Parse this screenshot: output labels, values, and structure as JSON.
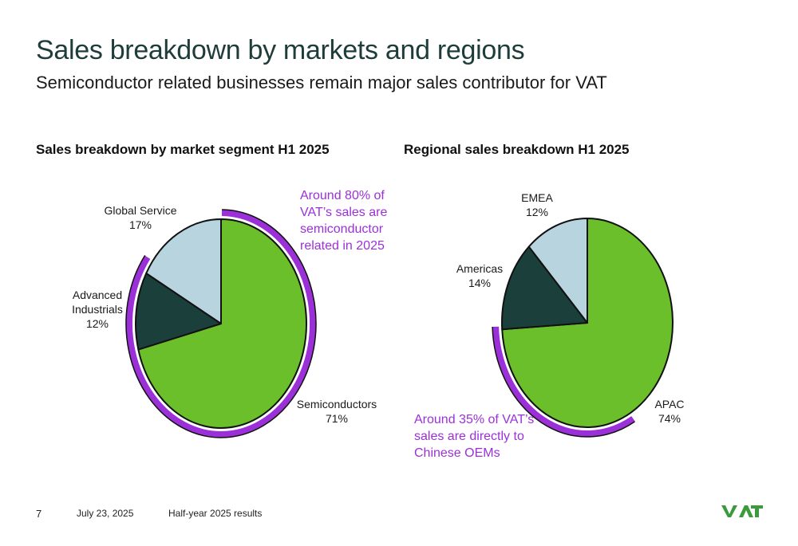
{
  "slide": {
    "title": "Sales breakdown by markets and regions",
    "subtitle": "Semiconductor related businesses remain major sales contributor for VAT"
  },
  "footer": {
    "page": "7",
    "date": "July 23, 2025",
    "document": "Half-year 2025 results"
  },
  "logo": {
    "text": "VAT",
    "color": "#3a9a3c"
  },
  "colors": {
    "green": "#6abf2a",
    "dark": "#1b3f3b",
    "light": "#b7d4df",
    "accent": "#9b30d9"
  },
  "chart_data": [
    {
      "type": "pie",
      "title": "Sales breakdown by market segment H1 2025",
      "slices": [
        {
          "label": "Semiconductors",
          "value": 71,
          "pct_label": "71%",
          "color": "#6abf2a"
        },
        {
          "label": "Advanced Industrials",
          "label_lines": [
            "Advanced",
            "Industrials"
          ],
          "value": 12,
          "pct_label": "12%",
          "color": "#1b3f3b"
        },
        {
          "label": "Global Service",
          "value": 17,
          "pct_label": "17%",
          "color": "#b7d4df"
        }
      ],
      "callout": {
        "lines": [
          "Around 80% of",
          "VAT’s sales are",
          "semiconductor",
          "related in 2025"
        ],
        "color": "#9b30d9"
      }
    },
    {
      "type": "pie",
      "title": "Regional sales breakdown H1 2025",
      "slices": [
        {
          "label": "APAC",
          "value": 74,
          "pct_label": "74%",
          "color": "#6abf2a"
        },
        {
          "label": "Americas",
          "value": 14,
          "pct_label": "14%",
          "color": "#1b3f3b"
        },
        {
          "label": "EMEA",
          "value": 12,
          "pct_label": "12%",
          "color": "#b7d4df"
        }
      ],
      "callout": {
        "lines": [
          "Around 35% of VAT’s",
          "sales are directly to",
          "Chinese OEMs"
        ],
        "color": "#9b30d9"
      }
    }
  ]
}
